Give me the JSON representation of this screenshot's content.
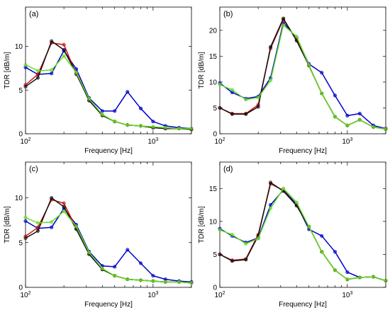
{
  "chart_data": [
    {
      "type": "line",
      "panel_label": "(a)",
      "xlabel": "Frequency [Hz]",
      "ylabel": "TDR [dB/m]",
      "xscale": "log",
      "xlim": [
        100,
        2000
      ],
      "ylim": [
        0,
        14.5
      ],
      "yticks": [
        0,
        5,
        10
      ],
      "grid": false,
      "legend": "none",
      "series": [
        {
          "color": "#0000cc",
          "x": [
            100,
            125,
            160,
            200,
            250,
            315,
            400,
            500,
            630,
            800,
            1000,
            1250,
            1600,
            2000
          ],
          "y": [
            7.6,
            6.8,
            6.9,
            9.5,
            7.4,
            4.1,
            2.6,
            2.6,
            4.8,
            2.9,
            1.4,
            0.9,
            0.7,
            0.6
          ]
        },
        {
          "color": "#cc1111",
          "x": [
            100,
            125,
            160,
            200,
            250,
            315,
            400,
            500,
            630,
            800,
            1000,
            1250,
            1600,
            2000
          ],
          "y": [
            5.6,
            6.8,
            10.4,
            10.2,
            6.8,
            3.9,
            2.1,
            1.4,
            1.0,
            0.9,
            0.7,
            0.6,
            0.6,
            0.5
          ]
        },
        {
          "color": "#111111",
          "x": [
            100,
            125,
            160,
            200,
            250,
            315,
            400,
            500,
            630,
            800,
            1000,
            1250,
            1600,
            2000
          ],
          "y": [
            5.4,
            6.4,
            10.6,
            9.6,
            6.9,
            3.8,
            2.1,
            1.4,
            1.0,
            0.9,
            0.7,
            0.6,
            0.6,
            0.5
          ]
        },
        {
          "color": "#66dd22",
          "x": [
            100,
            125,
            160,
            200,
            250,
            315,
            400,
            500,
            630,
            800,
            1000,
            1250,
            1600,
            2000
          ],
          "y": [
            7.9,
            7.2,
            7.3,
            8.9,
            7.0,
            4.0,
            2.2,
            1.4,
            1.0,
            0.9,
            0.8,
            0.7,
            0.6,
            0.6
          ]
        }
      ]
    },
    {
      "type": "line",
      "panel_label": "(b)",
      "xlabel": "Frequency [Hz]",
      "ylabel": "TDR [dB/m]",
      "xscale": "log",
      "xlim": [
        100,
        2000
      ],
      "ylim": [
        0,
        24.5
      ],
      "yticks": [
        0,
        5,
        10,
        15,
        20
      ],
      "grid": false,
      "legend": "none",
      "series": [
        {
          "color": "#0000cc",
          "x": [
            100,
            125,
            160,
            200,
            250,
            315,
            400,
            500,
            630,
            800,
            1000,
            1250,
            1600,
            2000
          ],
          "y": [
            9.8,
            8.0,
            6.8,
            7.2,
            10.8,
            21.5,
            18.5,
            13.5,
            11.8,
            7.4,
            3.5,
            3.9,
            1.6,
            1.0
          ]
        },
        {
          "color": "#cc1111",
          "x": [
            100,
            125,
            160,
            200,
            250,
            315,
            400,
            500,
            630,
            800,
            1000,
            1250,
            1600,
            2000
          ],
          "y": [
            5.0,
            3.9,
            3.9,
            5.6,
            16.5,
            22.1,
            18.2,
            13.2,
            7.8,
            3.3,
            1.6,
            2.7,
            1.3,
            0.9
          ]
        },
        {
          "color": "#111111",
          "x": [
            100,
            125,
            160,
            200,
            250,
            315,
            400,
            500,
            630,
            800,
            1000,
            1250,
            1600,
            2000
          ],
          "y": [
            5.0,
            3.8,
            3.8,
            5.2,
            16.8,
            22.3,
            18.0,
            13.2,
            7.8,
            3.3,
            1.6,
            2.7,
            1.3,
            0.9
          ]
        },
        {
          "color": "#66dd22",
          "x": [
            100,
            125,
            160,
            200,
            250,
            315,
            400,
            500,
            630,
            800,
            1000,
            1250,
            1600,
            2000
          ],
          "y": [
            9.5,
            8.5,
            6.6,
            7.0,
            10.3,
            21.0,
            18.8,
            13.3,
            7.8,
            3.3,
            1.6,
            2.7,
            1.3,
            0.9
          ]
        }
      ]
    },
    {
      "type": "line",
      "panel_label": "(c)",
      "xlabel": "Frequency [Hz]",
      "ylabel": "TDR [dB/m]",
      "xscale": "log",
      "xlim": [
        100,
        2000
      ],
      "ylim": [
        0,
        14
      ],
      "yticks": [
        0,
        5,
        10
      ],
      "grid": false,
      "legend": "none",
      "series": [
        {
          "color": "#0000cc",
          "x": [
            100,
            125,
            160,
            200,
            250,
            315,
            400,
            500,
            630,
            800,
            1000,
            1250,
            1600,
            2000
          ],
          "y": [
            7.4,
            6.6,
            6.7,
            8.8,
            7.0,
            4.0,
            2.4,
            2.3,
            4.2,
            2.7,
            1.3,
            0.9,
            0.7,
            0.6
          ]
        },
        {
          "color": "#cc1111",
          "x": [
            100,
            125,
            160,
            200,
            250,
            315,
            400,
            500,
            630,
            800,
            1000,
            1250,
            1600,
            2000
          ],
          "y": [
            5.7,
            6.7,
            9.8,
            9.4,
            6.6,
            3.8,
            2.0,
            1.3,
            0.9,
            0.8,
            0.7,
            0.6,
            0.6,
            0.5
          ]
        },
        {
          "color": "#111111",
          "x": [
            100,
            125,
            160,
            200,
            250,
            315,
            400,
            500,
            630,
            800,
            1000,
            1250,
            1600,
            2000
          ],
          "y": [
            5.5,
            6.3,
            10.0,
            9.0,
            6.5,
            3.7,
            2.0,
            1.3,
            0.9,
            0.8,
            0.7,
            0.6,
            0.6,
            0.5
          ]
        },
        {
          "color": "#66dd22",
          "x": [
            100,
            125,
            160,
            200,
            250,
            315,
            400,
            500,
            630,
            800,
            1000,
            1250,
            1600,
            2000
          ],
          "y": [
            7.8,
            7.2,
            7.3,
            8.5,
            6.8,
            3.9,
            2.1,
            1.3,
            0.9,
            0.8,
            0.7,
            0.6,
            0.6,
            0.5
          ]
        }
      ]
    },
    {
      "type": "line",
      "panel_label": "(d)",
      "xlabel": "Frequency [Hz]",
      "ylabel": "TDR [dB/m]",
      "xscale": "log",
      "xlim": [
        100,
        2000
      ],
      "ylim": [
        0,
        19
      ],
      "yticks": [
        0,
        5,
        10,
        15
      ],
      "grid": false,
      "legend": "none",
      "series": [
        {
          "color": "#0000cc",
          "x": [
            100,
            125,
            160,
            200,
            250,
            315,
            400,
            500,
            630,
            800,
            1000,
            1250,
            1600,
            2000
          ],
          "y": [
            8.9,
            7.8,
            6.8,
            7.5,
            12.5,
            14.8,
            12.6,
            8.8,
            7.8,
            5.4,
            2.3,
            1.5,
            1.6,
            1.0
          ]
        },
        {
          "color": "#cc1111",
          "x": [
            100,
            125,
            160,
            200,
            250,
            315,
            400,
            500,
            630,
            800,
            1000,
            1250,
            1600,
            2000
          ],
          "y": [
            5.0,
            4.1,
            4.3,
            8.0,
            15.7,
            14.7,
            12.4,
            9.2,
            5.4,
            2.6,
            1.2,
            1.5,
            1.6,
            1.0
          ]
        },
        {
          "color": "#111111",
          "x": [
            100,
            125,
            160,
            200,
            250,
            315,
            400,
            500,
            630,
            800,
            1000,
            1250,
            1600,
            2000
          ],
          "y": [
            5.0,
            4.0,
            4.2,
            7.8,
            15.9,
            14.6,
            12.4,
            9.2,
            5.4,
            2.6,
            1.2,
            1.5,
            1.6,
            1.0
          ]
        },
        {
          "color": "#66dd22",
          "x": [
            100,
            125,
            160,
            200,
            250,
            315,
            400,
            500,
            630,
            800,
            1000,
            1250,
            1600,
            2000
          ],
          "y": [
            8.7,
            8.0,
            6.6,
            7.4,
            12.0,
            15.0,
            12.9,
            9.2,
            5.4,
            2.6,
            1.2,
            1.5,
            1.6,
            1.0
          ]
        }
      ]
    }
  ]
}
